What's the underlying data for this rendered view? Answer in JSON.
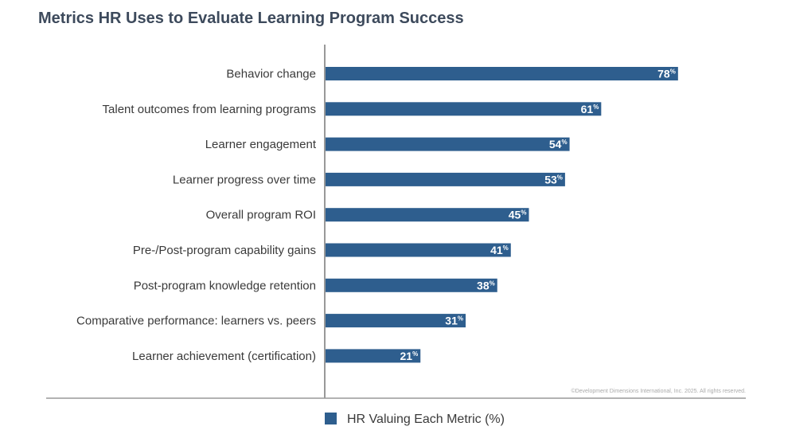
{
  "colors": {
    "bar": "#2e5e8e",
    "axis": "#999999",
    "title": "#3d4a5c"
  },
  "chart_data": {
    "type": "bar",
    "orientation": "horizontal",
    "title": "Metrics HR Uses to Evaluate Learning Program Success",
    "categories": [
      "Behavior change",
      "Talent outcomes from learning programs",
      "Learner engagement",
      "Learner progress over time",
      "Overall program ROI",
      "Pre-/Post-program capability gains",
      "Post-program knowledge retention",
      "Comparative performance: learners vs. peers",
      "Learner achievement (certification)"
    ],
    "series": [
      {
        "name": "HR Valuing Each Metric (%)",
        "values": [
          78,
          61,
          54,
          53,
          45,
          41,
          38,
          31,
          21
        ]
      }
    ],
    "value_suffix": "%",
    "xlim": [
      0,
      93
    ],
    "grid": false,
    "legend_position": "bottom-center",
    "copyright": "©Development Dimensions International, Inc. 2025. All rights reserved."
  }
}
